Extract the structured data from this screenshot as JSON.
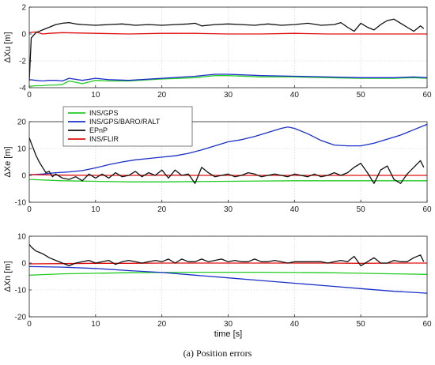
{
  "figure": {
    "caption": "(a)   Position errors"
  },
  "chart_data": [
    {
      "type": "line",
      "ylabel": "ΔXu  [m]",
      "xlabel": "",
      "xlim": [
        0,
        60
      ],
      "ylim": [
        -4,
        2
      ],
      "xticks": [
        0,
        10,
        20,
        30,
        40,
        50,
        60
      ],
      "yticks": [
        -4,
        -2,
        0,
        2
      ],
      "grid": true,
      "series": [
        {
          "name": "INS/GPS",
          "color": "#22cc22",
          "x": [
            0,
            1,
            2,
            3,
            4,
            5,
            6,
            8,
            10,
            12,
            15,
            20,
            25,
            28,
            30,
            35,
            40,
            45,
            50,
            55,
            58,
            60
          ],
          "y": [
            -3.9,
            -3.85,
            -3.85,
            -3.8,
            -3.8,
            -3.75,
            -3.5,
            -3.7,
            -3.45,
            -3.5,
            -3.5,
            -3.35,
            -3.25,
            -3.1,
            -3.1,
            -3.2,
            -3.2,
            -3.25,
            -3.3,
            -3.3,
            -3.25,
            -3.3
          ]
        },
        {
          "name": "INS/GPS/BARO/RALT",
          "color": "#1a2fc8",
          "x": [
            0,
            1,
            2,
            3,
            4,
            5,
            6,
            8,
            10,
            12,
            15,
            20,
            25,
            28,
            30,
            35,
            40,
            45,
            50,
            55,
            58,
            60
          ],
          "y": [
            -3.4,
            -3.45,
            -3.5,
            -3.45,
            -3.45,
            -3.5,
            -3.3,
            -3.45,
            -3.3,
            -3.4,
            -3.45,
            -3.3,
            -3.15,
            -3.0,
            -3.0,
            -3.1,
            -3.15,
            -3.2,
            -3.25,
            -3.25,
            -3.2,
            -3.25
          ]
        },
        {
          "name": "EPnP",
          "color": "#111111",
          "x": [
            0,
            0.3,
            1,
            2,
            3,
            4,
            5,
            6,
            7,
            8,
            10,
            12,
            14,
            16,
            18,
            20,
            22,
            24,
            25,
            26,
            28,
            30,
            32,
            34,
            36,
            38,
            40,
            42,
            44,
            46,
            47,
            48,
            49,
            50,
            51,
            52,
            53,
            54,
            55,
            56,
            57,
            58,
            59,
            59.5
          ],
          "y": [
            -3.5,
            -0.3,
            0.1,
            0.3,
            0.5,
            0.7,
            0.8,
            0.85,
            0.75,
            0.7,
            0.65,
            0.7,
            0.75,
            0.65,
            0.7,
            0.65,
            0.7,
            0.75,
            0.8,
            0.6,
            0.7,
            0.75,
            0.7,
            0.65,
            0.75,
            0.65,
            0.7,
            0.8,
            0.65,
            0.7,
            0.85,
            0.5,
            0.2,
            0.8,
            0.5,
            0.3,
            0.7,
            1.0,
            1.1,
            0.8,
            0.5,
            0.2,
            0.6,
            0.4
          ]
        },
        {
          "name": "INS/FLIR",
          "color": "#e01010",
          "x": [
            0,
            1,
            2,
            3,
            5,
            10,
            15,
            20,
            25,
            30,
            35,
            40,
            45,
            50,
            55,
            60
          ],
          "y": [
            0.1,
            0.15,
            0.0,
            0.05,
            0.1,
            0.05,
            0.0,
            0.05,
            0.05,
            0.0,
            0.0,
            0.05,
            0.0,
            0.0,
            0.0,
            0.0
          ]
        }
      ]
    },
    {
      "type": "line",
      "ylabel": "ΔXe  [m]",
      "xlabel": "",
      "xlim": [
        0,
        60
      ],
      "ylim": [
        -10,
        20
      ],
      "xticks": [
        0,
        10,
        20,
        30,
        40,
        50,
        60
      ],
      "yticks": [
        -10,
        0,
        10,
        20
      ],
      "grid": true,
      "legend": {
        "placement": "upper-left",
        "entries": [
          "INS/GPS",
          "INS/GPS/BARO/RALT",
          "EPnP",
          "INS/FLIR"
        ]
      },
      "series": [
        {
          "name": "INS/GPS",
          "color": "#22cc22",
          "x": [
            0,
            5,
            10,
            15,
            20,
            25,
            30,
            35,
            40,
            45,
            50,
            55,
            60
          ],
          "y": [
            -1.5,
            -2.0,
            -2.2,
            -2.4,
            -2.4,
            -2.3,
            -2.2,
            -2.1,
            -2.0,
            -2.0,
            -2.0,
            -2.0,
            -2.0
          ]
        },
        {
          "name": "INS/GPS/BARO/RALT",
          "color": "#1a2fc8",
          "x": [
            0,
            2,
            4,
            6,
            8,
            10,
            12,
            14,
            16,
            18,
            20,
            22,
            24,
            26,
            28,
            30,
            32,
            34,
            36,
            38,
            39,
            40,
            42,
            44,
            46,
            48,
            50,
            52,
            54,
            56,
            58,
            60
          ],
          "y": [
            0.2,
            0.5,
            1.0,
            1.3,
            1.8,
            2.8,
            4.0,
            5.0,
            5.8,
            6.3,
            6.8,
            7.3,
            8.2,
            9.5,
            11.0,
            12.5,
            13.3,
            14.5,
            16.0,
            17.5,
            18.0,
            17.5,
            15.5,
            13.0,
            11.3,
            11.0,
            11.0,
            12.0,
            13.5,
            15.0,
            17.0,
            19.0
          ]
        },
        {
          "name": "EPnP",
          "color": "#111111",
          "x": [
            0,
            0.3,
            1,
            1.5,
            2,
            2.5,
            3,
            3.5,
            4,
            5,
            6,
            7,
            8,
            9,
            10,
            11,
            12,
            13,
            14,
            15,
            16,
            17,
            18,
            19,
            20,
            21,
            22,
            23,
            24,
            25,
            26,
            27,
            28,
            29,
            30,
            31,
            32,
            33,
            34,
            35,
            36,
            37,
            38,
            39,
            40,
            41,
            42,
            43,
            44,
            45,
            46,
            47,
            48,
            49,
            50,
            51,
            52,
            53,
            54,
            55,
            56,
            57,
            58,
            59,
            59.5
          ],
          "y": [
            14.0,
            12.0,
            7.5,
            5.0,
            3.0,
            1.0,
            1.5,
            -0.5,
            0.5,
            -1.0,
            -1.5,
            -0.5,
            -2.0,
            0.5,
            -1.0,
            0.5,
            -1.0,
            1.0,
            -0.5,
            0.0,
            1.5,
            -0.5,
            1.0,
            0.0,
            2.0,
            -1.0,
            2.0,
            0.0,
            0.5,
            -3.0,
            3.0,
            1.0,
            -0.5,
            0.0,
            0.5,
            -0.5,
            0.0,
            1.0,
            0.5,
            -0.5,
            0.0,
            0.5,
            0.0,
            -0.5,
            0.5,
            0.0,
            -0.5,
            0.5,
            -0.5,
            0.0,
            1.0,
            0.0,
            1.0,
            3.0,
            4.5,
            1.0,
            -3.0,
            2.0,
            3.5,
            -1.5,
            -3.0,
            0.5,
            3.0,
            5.5,
            3.0
          ]
        },
        {
          "name": "INS/FLIR",
          "color": "#e01010",
          "x": [
            0,
            5,
            10,
            15,
            20,
            25,
            30,
            35,
            40,
            45,
            50,
            55,
            60
          ],
          "y": [
            0.3,
            0.1,
            0.0,
            0.0,
            0.1,
            0.0,
            0.0,
            0.0,
            0.0,
            0.0,
            0.0,
            0.0,
            0.0
          ]
        }
      ]
    },
    {
      "type": "line",
      "ylabel": "ΔXn  [m]",
      "xlabel": "time  [s]",
      "xlim": [
        0,
        60
      ],
      "ylim": [
        -20,
        10
      ],
      "xticks": [
        0,
        10,
        20,
        30,
        40,
        50,
        60
      ],
      "yticks": [
        -20,
        -10,
        0,
        10
      ],
      "grid": true,
      "series": [
        {
          "name": "INS/GPS",
          "color": "#22cc22",
          "x": [
            0,
            2,
            5,
            10,
            15,
            20,
            25,
            30,
            35,
            40,
            45,
            50,
            55,
            60
          ],
          "y": [
            -4.5,
            -4.3,
            -4.0,
            -3.8,
            -3.6,
            -3.5,
            -3.4,
            -3.4,
            -3.4,
            -3.5,
            -3.6,
            -3.8,
            -4.0,
            -4.2
          ]
        },
        {
          "name": "INS/GPS/BARO/RALT",
          "color": "#1a2fc8",
          "x": [
            0,
            5,
            10,
            15,
            20,
            25,
            30,
            35,
            40,
            45,
            50,
            55,
            60
          ],
          "y": [
            -1.3,
            -1.5,
            -2.0,
            -2.8,
            -3.5,
            -4.5,
            -5.5,
            -6.5,
            -7.5,
            -8.5,
            -9.5,
            -10.5,
            -11.2
          ]
        },
        {
          "name": "EPnP",
          "color": "#111111",
          "x": [
            0,
            0.3,
            1,
            2,
            3,
            4,
            5,
            6,
            7,
            8,
            9,
            10,
            11,
            12,
            13,
            14,
            15,
            16,
            17,
            18,
            19,
            20,
            21,
            22,
            23,
            24,
            25,
            26,
            27,
            28,
            29,
            30,
            31,
            32,
            33,
            34,
            35,
            36,
            37,
            38,
            39,
            40,
            41,
            42,
            43,
            44,
            45,
            46,
            47,
            48,
            49,
            50,
            51,
            52,
            53,
            54,
            55,
            56,
            57,
            58,
            59,
            59.5
          ],
          "y": [
            7.0,
            6.0,
            4.5,
            3.5,
            2.0,
            1.0,
            0.0,
            -1.0,
            0.0,
            0.5,
            1.0,
            0.0,
            0.5,
            1.0,
            -0.5,
            0.5,
            1.0,
            0.5,
            0.0,
            0.5,
            1.0,
            0.5,
            1.5,
            0.0,
            1.5,
            0.5,
            0.5,
            1.5,
            0.5,
            1.0,
            1.5,
            0.5,
            1.0,
            0.5,
            0.5,
            1.5,
            0.5,
            0.5,
            1.0,
            0.5,
            0.0,
            0.5,
            0.5,
            0.5,
            0.5,
            0.5,
            0.0,
            0.5,
            1.0,
            0.5,
            2.5,
            -1.0,
            0.5,
            2.0,
            0.0,
            0.0,
            1.0,
            0.5,
            0.5,
            2.0,
            3.0,
            0.5
          ]
        },
        {
          "name": "INS/FLIR",
          "color": "#e01010",
          "x": [
            0,
            5,
            10,
            15,
            20,
            25,
            30,
            35,
            40,
            45,
            50,
            55,
            60
          ],
          "y": [
            -0.3,
            -0.2,
            -0.1,
            -0.1,
            0.0,
            0.0,
            0.0,
            0.0,
            0.0,
            0.0,
            -0.1,
            0.0,
            0.0
          ]
        }
      ]
    }
  ]
}
